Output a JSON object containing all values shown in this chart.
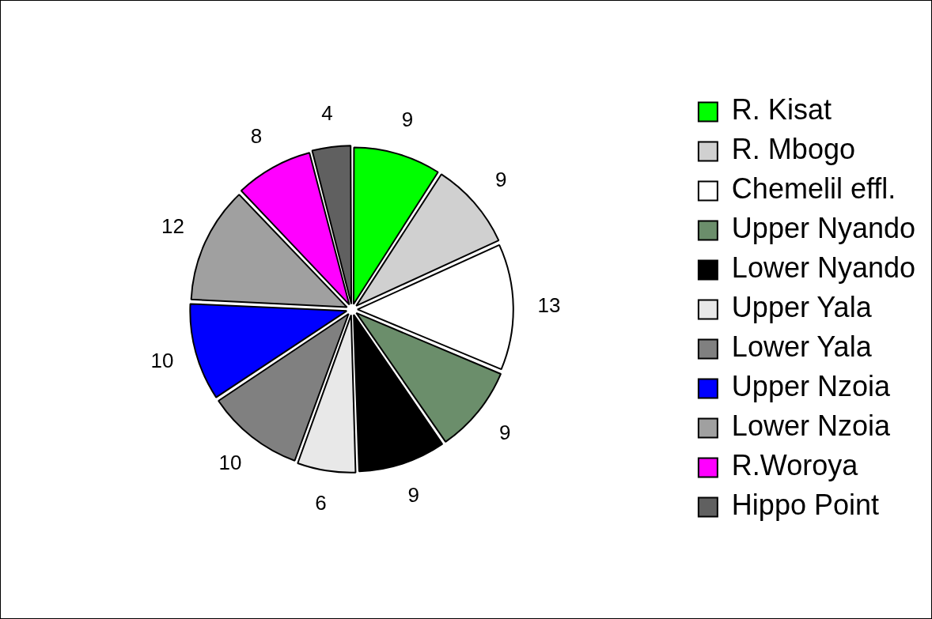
{
  "chart_data": {
    "type": "pie",
    "categories": [
      "R. Kisat",
      "R. Mbogo",
      "Chemelil effl.",
      "Upper Nyando",
      "Lower Nyando",
      "Upper Yala",
      "Lower Yala",
      "Upper Nzoia",
      "Lower Nzoia",
      "R.Woroya",
      "Hippo Point"
    ],
    "values": [
      9,
      9,
      13,
      9,
      9,
      6,
      10,
      10,
      12,
      8,
      4
    ],
    "colors": [
      "#00ff00",
      "#d0d0d0",
      "#ffffff",
      "#6b8e6b",
      "#000000",
      "#e8e8e8",
      "#808080",
      "#0000ff",
      "#a0a0a0",
      "#ff00ff",
      "#606060"
    ],
    "data_labels": true,
    "legend": "right"
  }
}
